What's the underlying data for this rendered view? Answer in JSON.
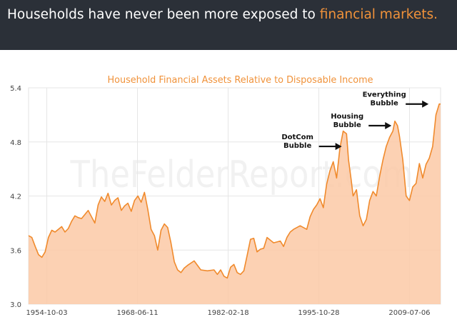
{
  "header": {
    "title_part1": "Households have never been more exposed to ",
    "title_highlight": "financial markets.",
    "background_color": "#2b3038",
    "text_color": "#ffffff",
    "highlight_color": "#f0923a"
  },
  "watermark": "TheFelderReport.com",
  "chart_data": {
    "type": "area",
    "title": "Household Financial Assets Relative to Disposable Income",
    "xlabel": "",
    "ylabel": "",
    "x_ticks": [
      "1954-10-03",
      "1968-06-11",
      "1982-02-18",
      "1995-10-28",
      "2009-07-06"
    ],
    "x_tick_years": [
      1954.75,
      1968.44,
      1982.13,
      1995.82,
      2009.51
    ],
    "xlim": [
      1952.0,
      2014.2
    ],
    "ylim": [
      3.0,
      5.4
    ],
    "y_ticks": [
      3.0,
      3.6,
      4.2,
      4.8,
      5.4
    ],
    "y_tick_labels": [
      "3.0",
      "3.6",
      "4.2",
      "4.8",
      "5.4"
    ],
    "grid": true,
    "line_color": "#f08a2c",
    "fill_color": "#fbc9a6",
    "title_color": "#f0923a",
    "series": [
      {
        "x": [
          1952.0,
          1952.5,
          1953.0,
          1953.5,
          1954.0,
          1954.5,
          1955.0,
          1955.5,
          1956.0,
          1957.0,
          1957.5,
          1958.0,
          1958.5,
          1959.0,
          1959.5,
          1960.0,
          1961.0,
          1961.5,
          1962.0,
          1962.5,
          1963.0,
          1963.5,
          1964.0,
          1964.5,
          1965.0,
          1965.5,
          1966.0,
          1966.5,
          1967.0,
          1967.5,
          1968.0,
          1968.5,
          1969.0,
          1969.5,
          1970.0,
          1970.5,
          1971.0,
          1971.5,
          1972.0,
          1972.5,
          1973.0,
          1973.5,
          1974.0,
          1974.5,
          1975.0,
          1975.5,
          1976.0,
          1977.0,
          1978.0,
          1979.0,
          1980.0,
          1980.5,
          1981.0,
          1981.5,
          1982.0,
          1982.5,
          1983.0,
          1983.5,
          1984.0,
          1984.5,
          1985.0,
          1985.5,
          1986.0,
          1986.5,
          1987.0,
          1987.5,
          1988.0,
          1989.0,
          1990.0,
          1990.5,
          1991.0,
          1991.5,
          1992.0,
          1993.0,
          1994.0,
          1994.5,
          1995.0,
          1995.5,
          1996.0,
          1996.5,
          1997.0,
          1997.5,
          1998.0,
          1998.5,
          1999.0,
          1999.5,
          2000.0,
          2000.3,
          2000.7,
          2001.0,
          2001.5,
          2002.0,
          2002.5,
          2003.0,
          2003.5,
          2004.0,
          2004.5,
          2005.0,
          2005.5,
          2006.0,
          2006.5,
          2007.0,
          2007.3,
          2007.7,
          2008.0,
          2008.5,
          2009.0,
          2009.5,
          2010.0,
          2010.5,
          2011.0,
          2011.5,
          2012.0,
          2012.5,
          2013.0,
          2013.5,
          2014.0,
          2014.2
        ],
        "y": [
          3.76,
          3.74,
          3.64,
          3.55,
          3.52,
          3.58,
          3.74,
          3.82,
          3.8,
          3.86,
          3.8,
          3.84,
          3.92,
          3.98,
          3.96,
          3.95,
          4.04,
          3.97,
          3.9,
          4.1,
          4.19,
          4.14,
          4.23,
          4.1,
          4.15,
          4.18,
          4.04,
          4.09,
          4.12,
          4.03,
          4.15,
          4.2,
          4.13,
          4.24,
          4.05,
          3.83,
          3.76,
          3.6,
          3.82,
          3.89,
          3.85,
          3.68,
          3.47,
          3.38,
          3.35,
          3.4,
          3.43,
          3.48,
          3.38,
          3.37,
          3.38,
          3.33,
          3.38,
          3.31,
          3.29,
          3.41,
          3.44,
          3.35,
          3.33,
          3.37,
          3.54,
          3.72,
          3.73,
          3.58,
          3.61,
          3.62,
          3.74,
          3.68,
          3.7,
          3.64,
          3.74,
          3.8,
          3.83,
          3.87,
          3.83,
          3.97,
          4.05,
          4.1,
          4.17,
          4.07,
          4.33,
          4.48,
          4.58,
          4.4,
          4.73,
          4.92,
          4.89,
          4.6,
          4.38,
          4.2,
          4.27,
          3.98,
          3.87,
          3.94,
          4.15,
          4.25,
          4.2,
          4.42,
          4.6,
          4.75,
          4.85,
          4.92,
          5.03,
          4.98,
          4.86,
          4.6,
          4.2,
          4.15,
          4.3,
          4.34,
          4.56,
          4.4,
          4.55,
          4.62,
          4.75,
          5.1,
          5.22,
          5.22
        ]
      }
    ],
    "annotations": [
      {
        "text_lines": [
          "DotCom",
          "Bubble"
        ],
        "point_x": 1999.5,
        "point_y": 4.75
      },
      {
        "text_lines": [
          "Housing",
          "Bubble"
        ],
        "point_x": 2007.0,
        "point_y": 4.98
      },
      {
        "text_lines": [
          "Everything",
          "Bubble"
        ],
        "point_x": 2012.6,
        "point_y": 5.22
      }
    ]
  }
}
